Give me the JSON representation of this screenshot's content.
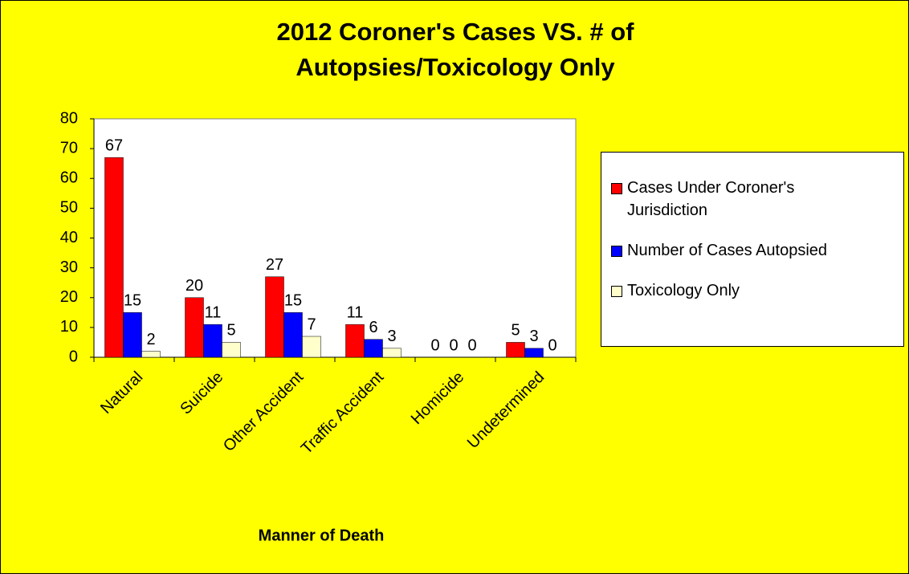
{
  "chart_data": {
    "type": "bar",
    "title": "2012 Coroner's Cases VS. # of Autopsies/Toxicology Only",
    "x_label": "Manner of Death",
    "categories": [
      "Natural",
      "Suicide",
      "Other Accident",
      "Traffic Accident",
      "Homicide",
      "Undetermined"
    ],
    "series": [
      {
        "name": "Cases Under Coroner's Jurisdiction",
        "color": "#ff0000",
        "values": [
          67,
          20,
          27,
          11,
          0,
          5
        ]
      },
      {
        "name": "Number of Cases Autopsied",
        "color": "#0000ff",
        "values": [
          15,
          11,
          15,
          6,
          0,
          3
        ]
      },
      {
        "name": "Toxicology Only",
        "color": "#ffffcc",
        "values": [
          2,
          5,
          7,
          3,
          0,
          0
        ]
      }
    ],
    "ylim": [
      0,
      80
    ],
    "yticks": [
      0,
      10,
      20,
      30,
      40,
      50,
      60,
      70,
      80
    ],
    "legend": "right",
    "background": "#ffff00"
  }
}
